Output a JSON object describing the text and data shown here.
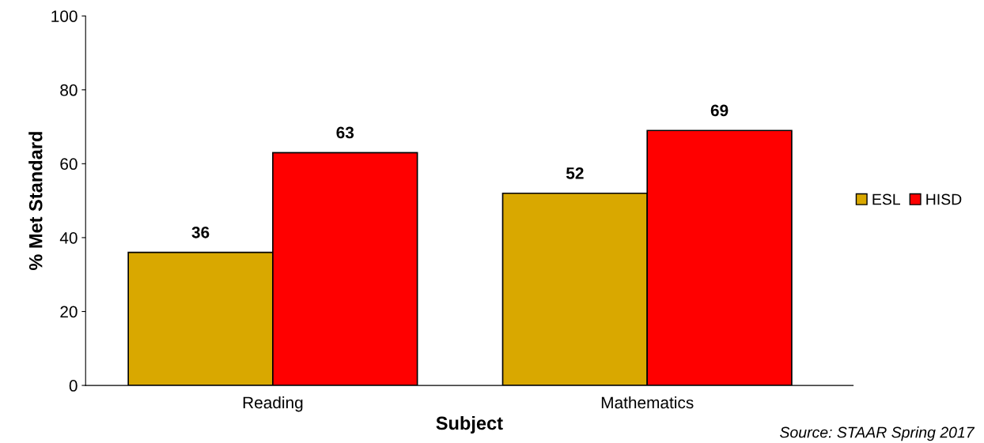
{
  "chart_data": {
    "type": "bar",
    "xlabel": "Subject",
    "ylabel": "% Met Standard",
    "categories": [
      "Reading",
      "Mathematics"
    ],
    "series": [
      {
        "name": "ESL",
        "color": "#d9a800",
        "values": [
          36,
          52
        ]
      },
      {
        "name": "HISD",
        "color": "#ff0000",
        "values": [
          63,
          69
        ]
      }
    ],
    "ylim": [
      0,
      100
    ],
    "yticks": [
      0,
      20,
      40,
      60,
      80,
      100
    ],
    "grid": false,
    "legend": "right",
    "data_labels": true,
    "annotations": [
      "Source: STAAR Spring 2017"
    ]
  }
}
